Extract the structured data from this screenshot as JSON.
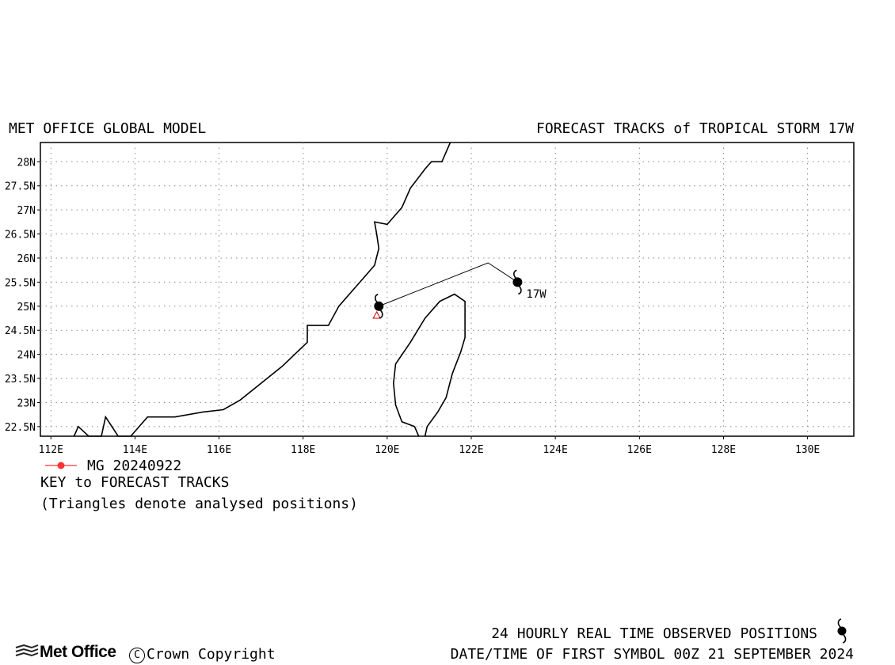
{
  "header": {
    "left_title": "MET OFFICE GLOBAL MODEL",
    "right_title": "FORECAST TRACKS of TROPICAL STORM 17W"
  },
  "map": {
    "projection": "lat-lon",
    "lon_range": [
      111.75,
      131.1
    ],
    "lat_range": [
      22.3,
      28.4
    ],
    "grid": true,
    "grid_style": "dotted",
    "x_ticks": [
      "112E",
      "114E",
      "116E",
      "118E",
      "120E",
      "122E",
      "124E",
      "126E",
      "128E",
      "130E"
    ],
    "x_tick_values": [
      112,
      114,
      116,
      118,
      120,
      122,
      124,
      126,
      128,
      130
    ],
    "y_ticks": [
      "22.5N",
      "23N",
      "23.5N",
      "24N",
      "24.5N",
      "25N",
      "25.5N",
      "26N",
      "26.5N",
      "27N",
      "27.5N",
      "28N"
    ],
    "y_tick_values": [
      22.5,
      23,
      23.5,
      24,
      24.5,
      25,
      25.5,
      26,
      26.5,
      27,
      27.5,
      28
    ],
    "coastline_color": "#000000",
    "mainland_coast": [
      [
        112.55,
        22.3
      ],
      [
        112.65,
        22.5
      ],
      [
        112.9,
        22.3
      ],
      [
        113.2,
        22.3
      ],
      [
        113.3,
        22.7
      ],
      [
        113.6,
        22.3
      ],
      [
        113.9,
        22.3
      ],
      [
        114.3,
        22.7
      ],
      [
        114.95,
        22.7
      ],
      [
        115.6,
        22.8
      ],
      [
        116.1,
        22.85
      ],
      [
        116.5,
        23.05
      ],
      [
        117.0,
        23.4
      ],
      [
        117.5,
        23.75
      ],
      [
        118.1,
        24.25
      ],
      [
        118.1,
        24.6
      ],
      [
        118.6,
        24.6
      ],
      [
        118.85,
        25.0
      ],
      [
        119.35,
        25.5
      ],
      [
        119.7,
        25.85
      ],
      [
        119.8,
        26.2
      ],
      [
        119.75,
        26.5
      ],
      [
        119.7,
        26.75
      ],
      [
        120.0,
        26.7
      ],
      [
        120.35,
        27.05
      ],
      [
        120.55,
        27.45
      ],
      [
        120.9,
        27.85
      ],
      [
        121.05,
        28.0
      ],
      [
        121.3,
        28.0
      ],
      [
        121.4,
        28.2
      ],
      [
        121.5,
        28.4
      ]
    ],
    "taiwan_coast": [
      [
        120.9,
        22.3
      ],
      [
        120.95,
        22.5
      ],
      [
        121.2,
        22.8
      ],
      [
        121.4,
        23.1
      ],
      [
        121.55,
        23.6
      ],
      [
        121.75,
        24.05
      ],
      [
        121.85,
        24.35
      ],
      [
        121.85,
        24.6
      ],
      [
        121.85,
        25.1
      ],
      [
        121.6,
        25.25
      ],
      [
        121.25,
        25.1
      ],
      [
        120.9,
        24.75
      ],
      [
        120.55,
        24.25
      ],
      [
        120.2,
        23.8
      ],
      [
        120.15,
        23.4
      ],
      [
        120.2,
        22.95
      ],
      [
        120.35,
        22.6
      ],
      [
        120.65,
        22.5
      ],
      [
        120.75,
        22.3
      ]
    ]
  },
  "track": {
    "storm_label": "17W",
    "run_label": "MG 20240922",
    "track_color": "#000000",
    "key_color": "#ff3333",
    "points": [
      [
        123.1,
        25.5
      ],
      [
        122.4,
        25.9
      ],
      [
        119.8,
        25.0
      ]
    ],
    "observed_positions": [
      [
        123.1,
        25.5
      ],
      [
        119.8,
        25.0
      ]
    ],
    "analysed_position": [
      119.75,
      24.8
    ],
    "analysed_color": "#cc0000"
  },
  "key": {
    "title": "KEY to FORECAST TRACKS",
    "note": "(Triangles denote analysed positions)"
  },
  "footer": {
    "observed_label": "24 HOURLY REAL TIME OBSERVED POSITIONS",
    "datetime_label": "DATE/TIME OF FIRST SYMBOL 00Z 21 SEPTEMBER 2024",
    "logo_text": "Met Office",
    "copyright_text": "Crown Copyright"
  }
}
